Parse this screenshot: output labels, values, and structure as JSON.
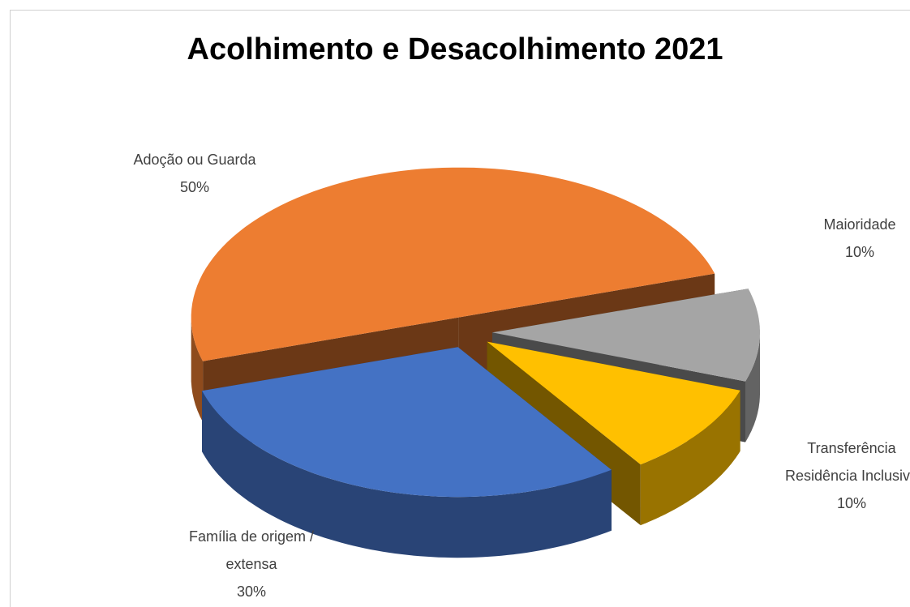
{
  "chart_data": {
    "type": "pie3d",
    "title": "Acolhimento e Desacolhimento 2021",
    "categories": [
      "Adoção ou Guarda",
      "Maioridade",
      "Transferência Residência Inclusiva",
      "Família de origem / extensa"
    ],
    "values": [
      50,
      10,
      10,
      30
    ],
    "value_labels": [
      "50%",
      "10%",
      "10%",
      "30%"
    ],
    "colors": [
      "#ED7D31",
      "#A5A5A5",
      "#FFC000",
      "#4472C4"
    ]
  }
}
